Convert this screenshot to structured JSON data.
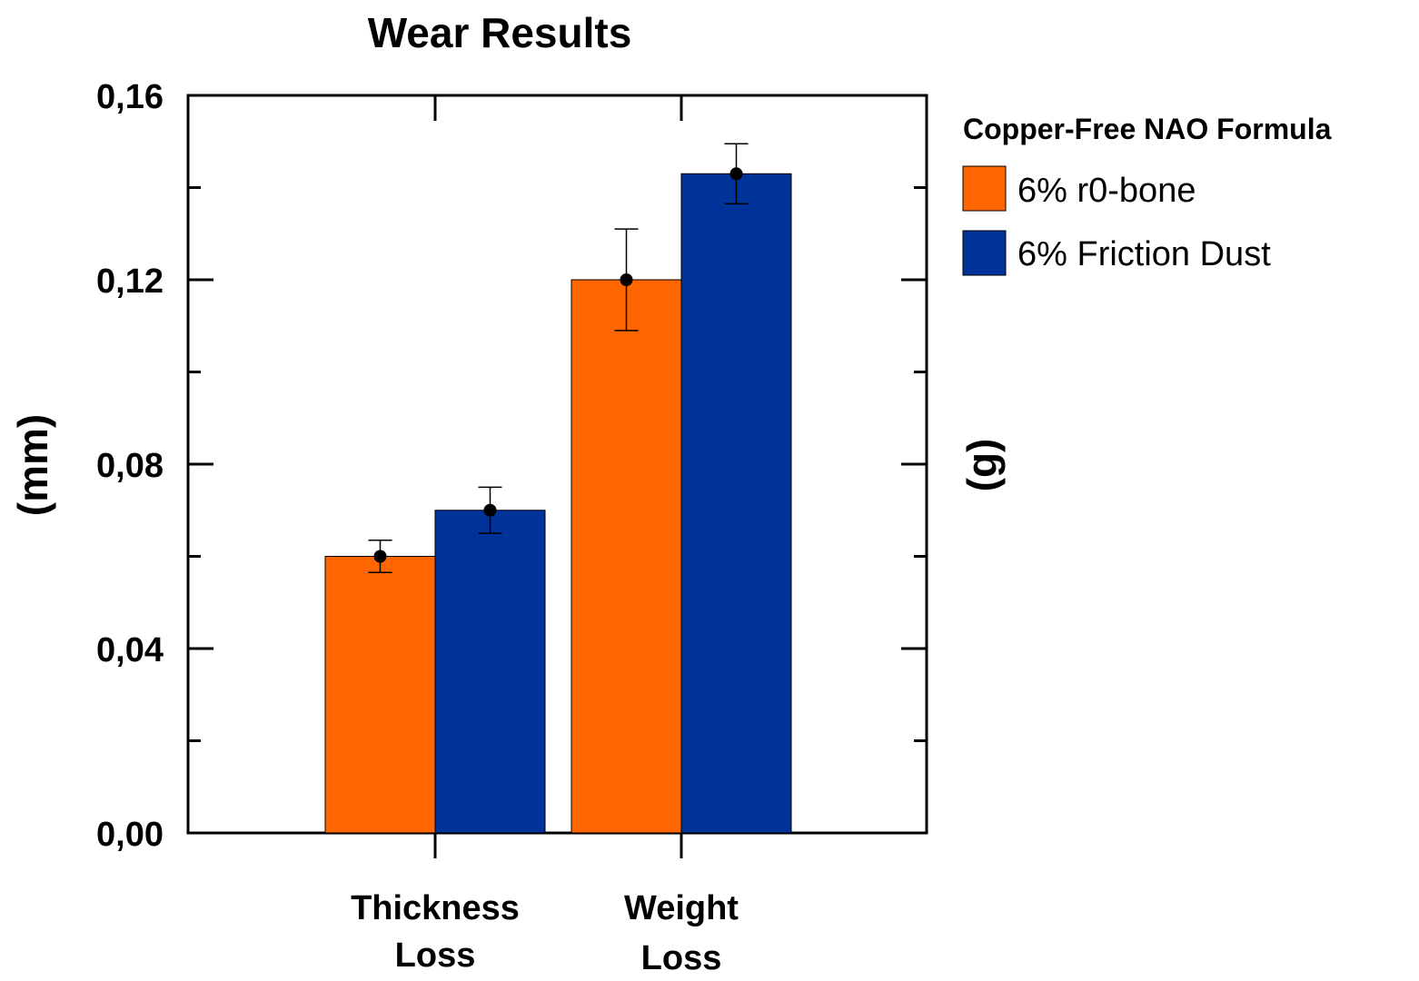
{
  "chart_data": {
    "type": "bar",
    "title": "Wear Results",
    "ylabel_left": "(mm)",
    "ylabel_right": "(g)",
    "categories": [
      {
        "line1": "Thickness",
        "line2": "Loss"
      },
      {
        "line1": "Weight",
        "line2": "Loss"
      }
    ],
    "series": [
      {
        "name": "6% r0-bone",
        "color": "#FF6600",
        "values": [
          0.06,
          0.12
        ],
        "errors": [
          0.0035,
          0.011
        ]
      },
      {
        "name": "6% Friction Dust",
        "color": "#003399",
        "values": [
          0.07,
          0.143
        ],
        "errors": [
          0.005,
          0.0065
        ]
      }
    ],
    "ylim": [
      0,
      0.16
    ],
    "yticks": [
      "0,00",
      "0,04",
      "0,08",
      "0,12",
      "0,16"
    ],
    "ytick_values": [
      0,
      0.04,
      0.08,
      0.12,
      0.16
    ],
    "legend_title": "Copper-Free NAO Formula",
    "legend_placement": "right"
  }
}
